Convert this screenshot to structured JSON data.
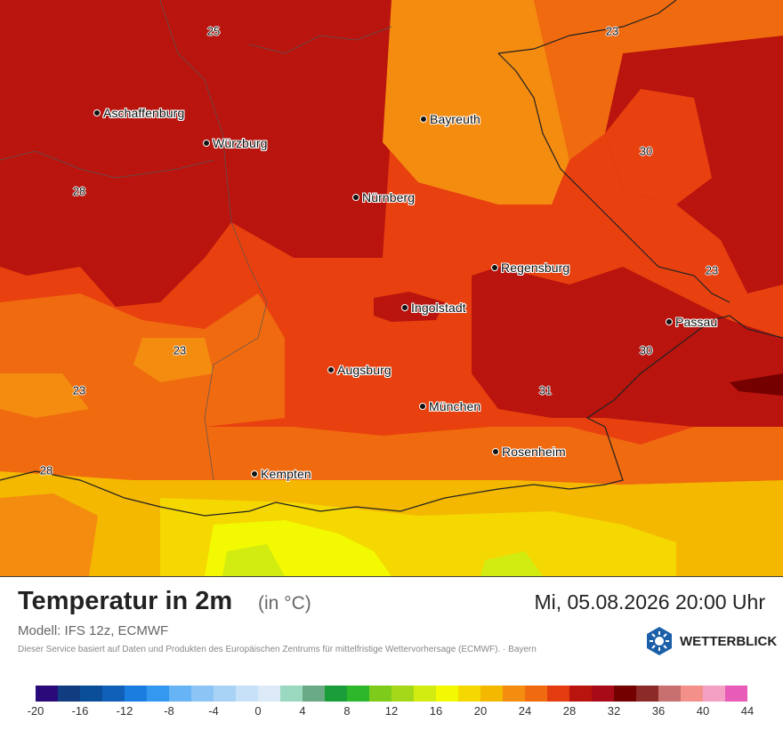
{
  "map": {
    "cities": [
      {
        "name": "Aschaffenburg"
      },
      {
        "name": "Würzburg"
      },
      {
        "name": "Bayreuth"
      },
      {
        "name": "Nürnberg"
      },
      {
        "name": "Regensburg"
      },
      {
        "name": "Ingolstadt"
      },
      {
        "name": "Passau"
      },
      {
        "name": "Augsburg"
      },
      {
        "name": "München"
      },
      {
        "name": "Rosenheim"
      },
      {
        "name": "Kempten"
      }
    ],
    "temp_labels": [
      "25",
      "23",
      "30",
      "28",
      "23",
      "23",
      "30",
      "23",
      "31",
      "28"
    ]
  },
  "legend": {
    "title": "Temperatur in 2m",
    "unit": "(in °C)",
    "datetime": "Mi, 05.08.2026 20:00 Uhr",
    "model": "Modell: IFS 12z, ECMWF",
    "disclaimer": "Dieser Service basiert auf Daten und Produkten des Europäischen Zentrums für mittelfristige Wettervorhersage (ECMWF).  ·  Bayern",
    "logo_text": "WETTERBLICK",
    "scale_colors": [
      "#2a0a7a",
      "#123c80",
      "#0a4d99",
      "#1060b8",
      "#1a7ee0",
      "#3399f0",
      "#66b3f5",
      "#8cc4f5",
      "#a9d3f6",
      "#c6e1f8",
      "#dceaf8",
      "#9ad9bf",
      "#6aaa84",
      "#1b9e3a",
      "#2cb82a",
      "#7ecb1c",
      "#a6d81a",
      "#d2ec12",
      "#f3f900",
      "#f4d800",
      "#f4b800",
      "#f48c10",
      "#f06a10",
      "#e23c10",
      "#b9140e",
      "#a80a18",
      "#740000",
      "#8c2a28",
      "#c87070",
      "#f4908a",
      "#f4a0c4",
      "#e85cb8"
    ],
    "scale_ticks": [
      "-20",
      "-16",
      "-12",
      "-8",
      "-4",
      "0",
      "4",
      "8",
      "12",
      "16",
      "20",
      "24",
      "28",
      "32",
      "36",
      "40",
      "44"
    ]
  }
}
